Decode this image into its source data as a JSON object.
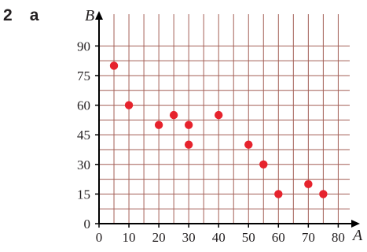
{
  "question": {
    "number": "2",
    "part": "a"
  },
  "chart_data": {
    "type": "scatter",
    "xlabel": "A",
    "ylabel": "B",
    "xlim": [
      0,
      85
    ],
    "ylim": [
      0,
      97
    ],
    "x_ticks": [
      0,
      10,
      20,
      30,
      40,
      50,
      60,
      70,
      80
    ],
    "y_ticks": [
      0,
      15,
      30,
      45,
      60,
      75,
      90
    ],
    "grid": true,
    "grid_color": "#a35f56",
    "point_color": "#e6232d",
    "points": [
      {
        "x": 5,
        "y": 80
      },
      {
        "x": 10,
        "y": 60
      },
      {
        "x": 20,
        "y": 50
      },
      {
        "x": 25,
        "y": 55
      },
      {
        "x": 30,
        "y": 50
      },
      {
        "x": 30,
        "y": 40
      },
      {
        "x": 40,
        "y": 55
      },
      {
        "x": 50,
        "y": 40
      },
      {
        "x": 55,
        "y": 30
      },
      {
        "x": 60,
        "y": 15
      },
      {
        "x": 70,
        "y": 20
      },
      {
        "x": 75,
        "y": 15
      }
    ]
  }
}
